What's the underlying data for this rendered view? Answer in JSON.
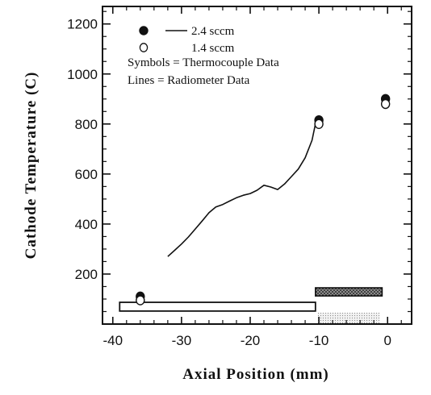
{
  "chart_data": {
    "type": "line",
    "xlabel": "Axial Position (mm)",
    "ylabel": "Cathode Temperature (C)",
    "xlim": [
      -41.5,
      3.5
    ],
    "ylim": [
      0,
      1270
    ],
    "xticks": [
      -40,
      -30,
      -20,
      -10,
      0
    ],
    "yticks": [
      200,
      400,
      600,
      800,
      1000,
      1200
    ],
    "grid": false,
    "legend": {
      "position": "top-left",
      "entries": [
        {
          "symbol": "●",
          "line": true,
          "label": "2.4 sccm"
        },
        {
          "symbol": "○",
          "line": false,
          "label": "1.4 sccm"
        }
      ],
      "notes": [
        "Symbols = Thermocouple Data",
        "Lines = Radiometer Data"
      ]
    },
    "series": [
      {
        "name": "2.4 sccm",
        "kind": "radiometer-line",
        "x": [
          -32,
          -31,
          -30,
          -29,
          -28,
          -27,
          -26,
          -25,
          -24,
          -23,
          -22,
          -21,
          -20,
          -19,
          -18,
          -17,
          -16,
          -15,
          -14,
          -13,
          -12,
          -11,
          -10.5
        ],
        "y": [
          270,
          295,
          320,
          348,
          380,
          412,
          445,
          468,
          478,
          492,
          505,
          515,
          522,
          535,
          555,
          548,
          538,
          560,
          590,
          620,
          665,
          735,
          800
        ]
      },
      {
        "name": "2.4 sccm",
        "kind": "thermocouple",
        "marker": "filled",
        "x": [
          -36,
          -10,
          -0.3
        ],
        "y": [
          110,
          815,
          900
        ]
      },
      {
        "name": "1.4 sccm",
        "kind": "thermocouple",
        "marker": "open",
        "x": [
          -36,
          -10,
          -0.3
        ],
        "y": [
          95,
          800,
          880
        ]
      }
    ],
    "schematic": {
      "bar": {
        "x_start": -39,
        "x_end": -10.5,
        "y_low": 52,
        "y_high": 87
      },
      "block": {
        "x_start": -10.5,
        "x_end": -0.8,
        "y_low": 52,
        "y_high": 145
      }
    }
  }
}
